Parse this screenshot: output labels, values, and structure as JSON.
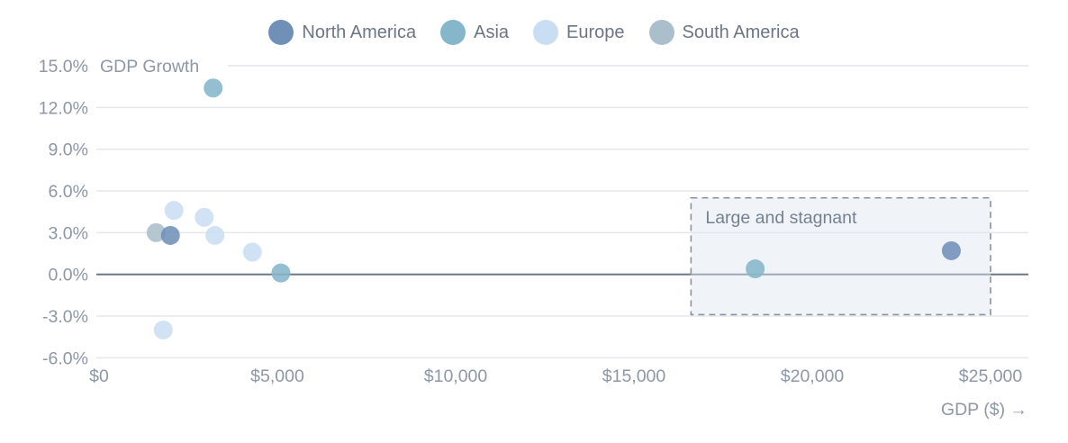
{
  "legend": {
    "items": [
      {
        "label": "North America",
        "color": "#7090b7"
      },
      {
        "label": "Asia",
        "color": "#85b6ca"
      },
      {
        "label": "Europe",
        "color": "#c9def2"
      },
      {
        "label": "South America",
        "color": "#aabfcb"
      }
    ]
  },
  "chart_data": {
    "type": "scatter",
    "title": "",
    "xlabel": "GDP ($) →",
    "ylabel": "GDP Growth",
    "xlim": [
      0,
      25000
    ],
    "ylim": [
      -6,
      15
    ],
    "grid": "horizontal-only",
    "x_ticks": [
      {
        "value": 0,
        "label": "$0"
      },
      {
        "value": 5000,
        "label": "$5,000"
      },
      {
        "value": 10000,
        "label": "$10,000"
      },
      {
        "value": 15000,
        "label": "$15,000"
      },
      {
        "value": 20000,
        "label": "$20,000"
      },
      {
        "value": 25000,
        "label": "$25,000"
      }
    ],
    "y_ticks": [
      {
        "value": 15,
        "label": "15.0%"
      },
      {
        "value": 12,
        "label": "12.0%"
      },
      {
        "value": 9,
        "label": "9.0%"
      },
      {
        "value": 6,
        "label": "6.0%"
      },
      {
        "value": 3,
        "label": "3.0%"
      },
      {
        "value": 0,
        "label": "0.0%"
      },
      {
        "value": -3,
        "label": "-3.0%"
      },
      {
        "value": -6,
        "label": "-6.0%"
      }
    ],
    "series": [
      {
        "name": "North America",
        "color": "#7090b7",
        "points": [
          {
            "gdp": 2000,
            "growth": 2.8
          },
          {
            "gdp": 23900,
            "growth": 1.7
          }
        ]
      },
      {
        "name": "Asia",
        "color": "#85b6ca",
        "points": [
          {
            "gdp": 3200,
            "growth": 13.4
          },
          {
            "gdp": 5100,
            "growth": 0.1
          },
          {
            "gdp": 18400,
            "growth": 0.4
          }
        ]
      },
      {
        "name": "Europe",
        "color": "#c9def2",
        "points": [
          {
            "gdp": 2100,
            "growth": 4.6
          },
          {
            "gdp": 2950,
            "growth": 4.1
          },
          {
            "gdp": 3250,
            "growth": 2.8
          },
          {
            "gdp": 4300,
            "growth": 1.6
          },
          {
            "gdp": 1800,
            "growth": -4.0
          }
        ]
      },
      {
        "name": "South America",
        "color": "#aabfcb",
        "points": [
          {
            "gdp": 1600,
            "growth": 3.0
          }
        ]
      }
    ],
    "annotation": {
      "label": "Large and stagnant",
      "x_range": [
        16600,
        25000
      ],
      "y_range": [
        -2.9,
        5.5
      ]
    },
    "colors": {
      "zero_line": "#6b7888",
      "gridline": "#e6e7eb",
      "annotation_border": "#8995a4",
      "annotation_fill": "rgba(222,231,242,0.45)"
    }
  }
}
